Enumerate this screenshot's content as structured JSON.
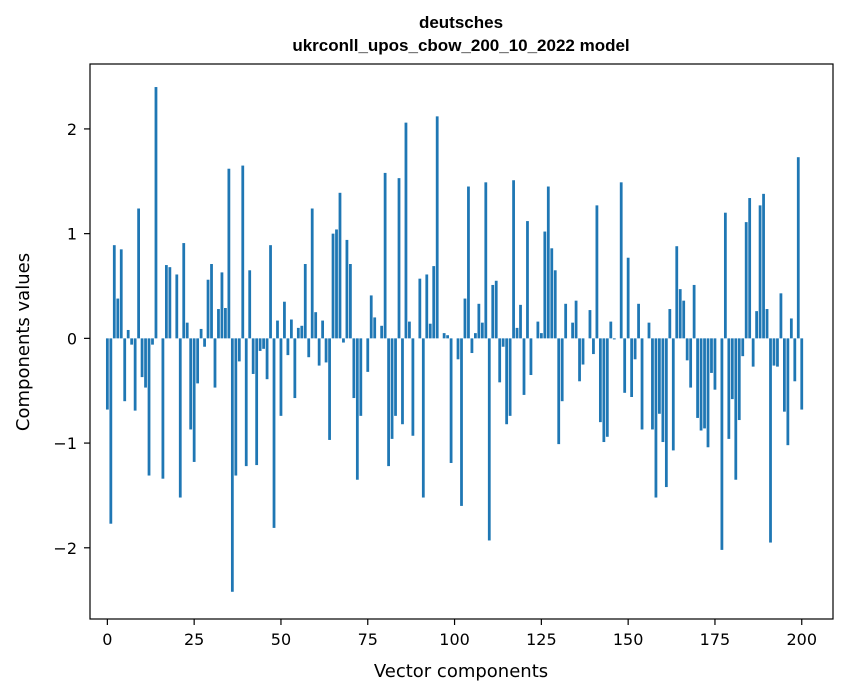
{
  "chart_data": {
    "type": "bar",
    "title_line1": "deutsches",
    "title_line2": "ukrconll_upos_cbow_200_10_2022 model",
    "xlabel": "Vector components",
    "ylabel": "Components values",
    "xlim": [
      -5,
      209
    ],
    "ylim": [
      -2.68,
      2.62
    ],
    "x_ticks": [
      0,
      25,
      50,
      75,
      100,
      125,
      150,
      175,
      200
    ],
    "y_ticks": [
      -2,
      -1,
      0,
      1,
      2
    ],
    "y_tick_labels": [
      "−2",
      "−1",
      "0",
      "1",
      "2"
    ],
    "bar_color": "#1f77b4",
    "grid": false,
    "values": [
      -0.68,
      -1.77,
      0.89,
      0.38,
      0.85,
      -0.6,
      0.08,
      -0.06,
      -0.69,
      1.24,
      -0.37,
      -0.47,
      -1.31,
      -0.06,
      2.4,
      0.0,
      -1.34,
      0.7,
      0.68,
      0.0,
      0.61,
      -1.52,
      0.91,
      0.15,
      -0.87,
      -1.18,
      -0.43,
      0.09,
      -0.08,
      0.56,
      0.71,
      -0.47,
      0.28,
      0.63,
      0.29,
      1.62,
      -2.42,
      -1.31,
      -0.22,
      1.65,
      -1.22,
      0.65,
      -0.34,
      -1.21,
      -0.12,
      -0.1,
      -0.39,
      0.89,
      -1.81,
      0.17,
      -0.74,
      0.35,
      -0.16,
      0.18,
      -0.57,
      0.1,
      0.12,
      0.71,
      -0.18,
      1.24,
      0.25,
      -0.26,
      0.17,
      -0.23,
      -0.97,
      1.0,
      1.04,
      1.39,
      -0.04,
      0.94,
      0.71,
      -0.57,
      -1.35,
      -0.74,
      0.0,
      -0.32,
      0.41,
      0.2,
      0.0,
      0.12,
      1.58,
      -1.22,
      -0.96,
      -0.74,
      1.53,
      -0.82,
      2.06,
      0.16,
      -0.93,
      0.0,
      0.57,
      -1.52,
      0.61,
      0.14,
      0.69,
      2.12,
      0.0,
      0.05,
      0.03,
      -1.19,
      0.0,
      -0.2,
      -1.6,
      0.38,
      1.45,
      -0.14,
      0.05,
      0.33,
      0.15,
      1.49,
      -1.93,
      0.51,
      0.55,
      -0.42,
      -0.08,
      -0.82,
      -0.74,
      1.51,
      0.1,
      0.32,
      -0.54,
      1.12,
      -0.35,
      0.0,
      0.16,
      0.05,
      1.02,
      1.45,
      0.86,
      0.65,
      -1.01,
      -0.6,
      0.33,
      0.0,
      0.15,
      0.36,
      -0.41,
      -0.25,
      0.0,
      0.27,
      -0.15,
      1.27,
      -0.8,
      -0.99,
      -0.94,
      0.16,
      -0.01,
      0.0,
      1.49,
      -0.52,
      0.77,
      -0.56,
      -0.2,
      0.33,
      -0.87,
      0.0,
      0.15,
      -0.87,
      -1.52,
      -0.72,
      -0.99,
      -1.42,
      0.28,
      -1.07,
      0.88,
      0.47,
      0.36,
      -0.21,
      -0.47,
      0.51,
      -0.76,
      -0.88,
      -0.86,
      -1.04,
      -0.33,
      -0.49,
      0.0,
      -2.02,
      1.2,
      -0.96,
      -0.58,
      -1.35,
      -0.78,
      -0.17,
      1.11,
      1.34,
      -0.27,
      0.26,
      1.27,
      1.38,
      0.28,
      -1.95,
      -0.26,
      -0.27,
      0.43,
      -0.7,
      -1.02,
      0.19,
      -0.41,
      1.73,
      -0.68
    ]
  }
}
